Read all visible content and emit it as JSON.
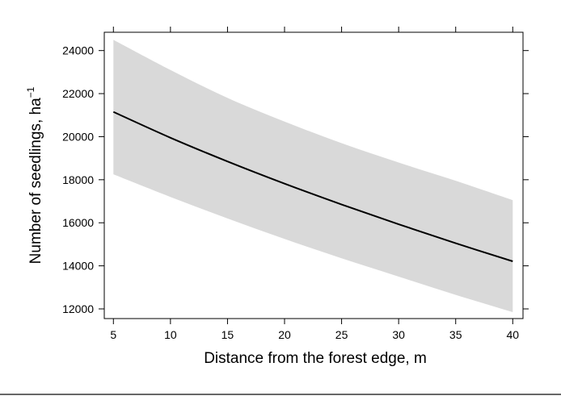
{
  "chart_data": {
    "type": "line",
    "title": "",
    "xlabel": "Distance from the forest edge, m",
    "ylabel": {
      "text": "Number of seedlings, ha",
      "superscript": "−1"
    },
    "xlim": [
      4.2,
      40.9
    ],
    "ylim": [
      11550,
      24850
    ],
    "x_ticks": [
      5,
      10,
      15,
      20,
      25,
      30,
      35,
      40
    ],
    "y_ticks": [
      12000,
      14000,
      16000,
      18000,
      20000,
      22000,
      24000
    ],
    "grid": false,
    "legend": "none",
    "series": [
      {
        "kind": "line",
        "color": "#000000",
        "x": [
          5,
          10,
          15,
          20,
          25,
          30,
          35,
          40
        ],
        "y": [
          21150,
          19950,
          18850,
          17820,
          16850,
          15930,
          15050,
          14210
        ]
      },
      {
        "kind": "band",
        "color": "#d9d9d9",
        "x": [
          5,
          10,
          15,
          20,
          25,
          30,
          35,
          40
        ],
        "lower": [
          18250,
          17200,
          16200,
          15250,
          14350,
          13500,
          12650,
          11850
        ],
        "upper": [
          24500,
          23100,
          21800,
          20700,
          19700,
          18800,
          17950,
          17050
        ]
      }
    ]
  }
}
